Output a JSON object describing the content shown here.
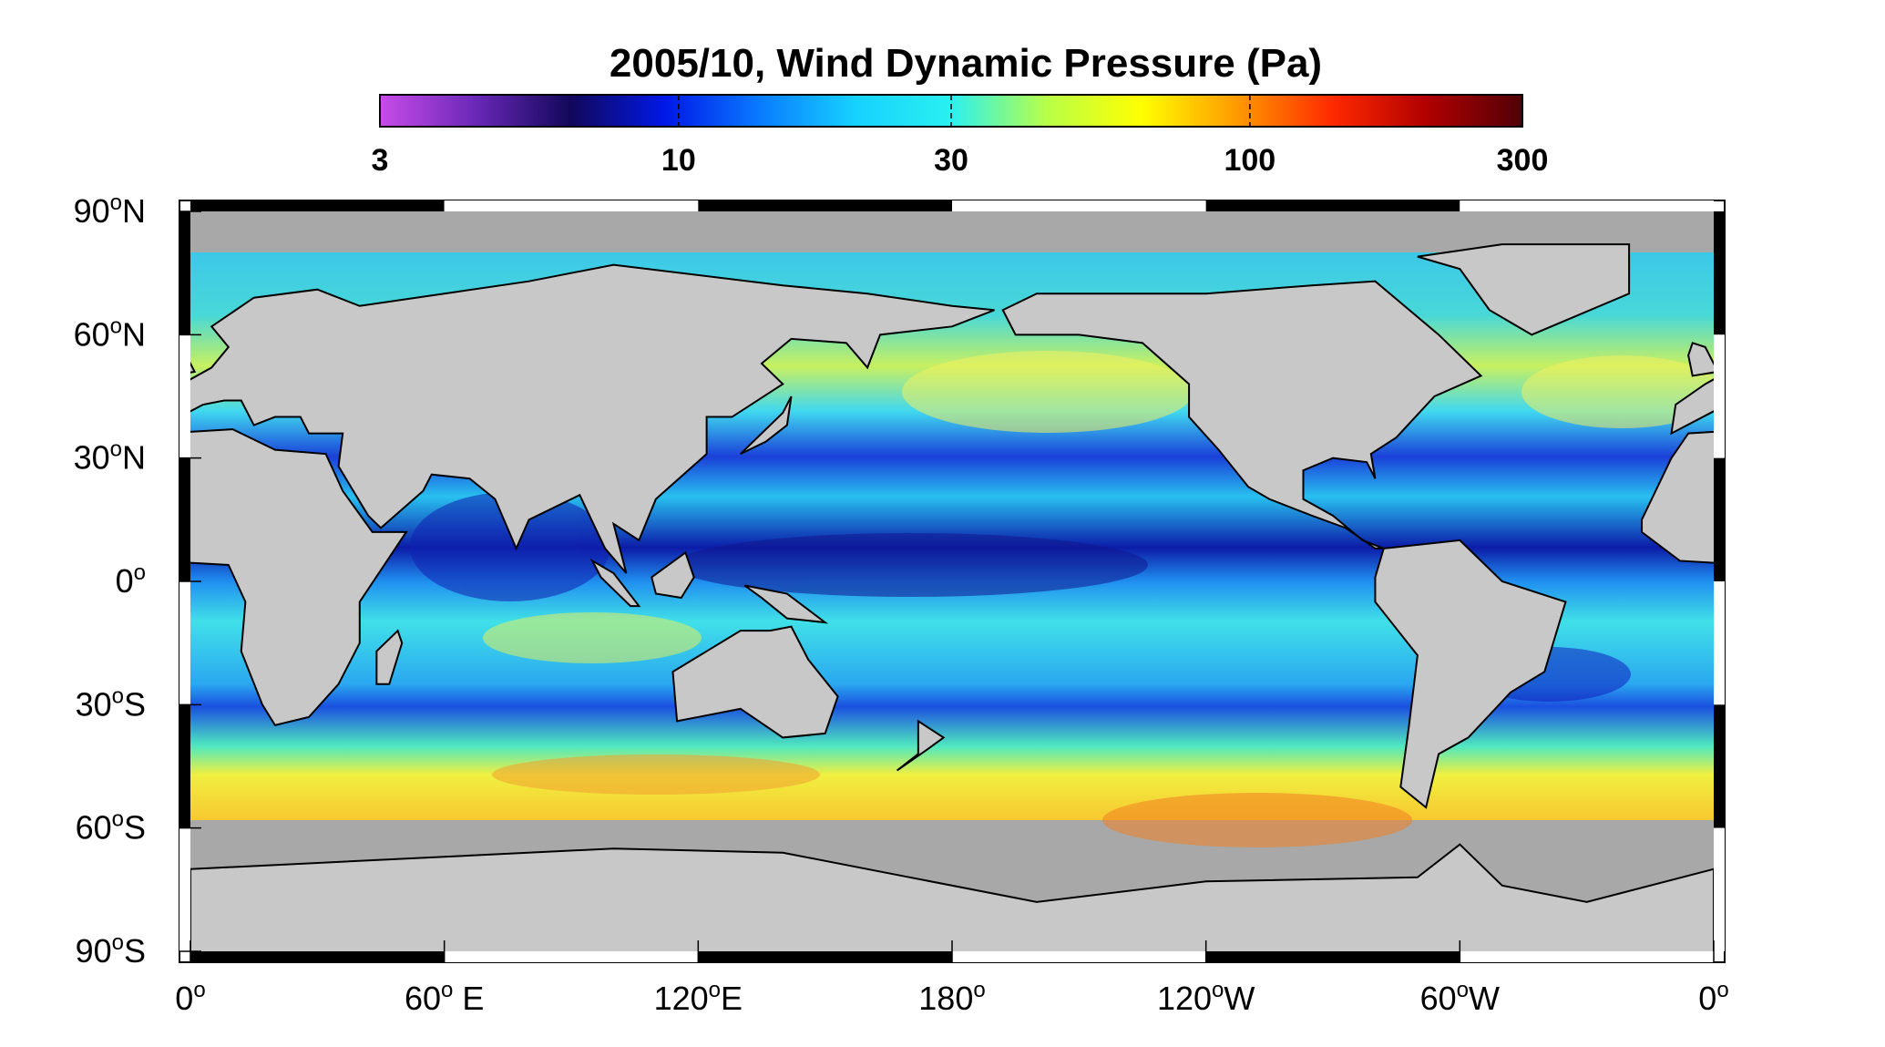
{
  "map": {
    "title": "2005/10, Wind Dynamic Pressure (Pa)",
    "colorbar": {
      "range": [
        3,
        300
      ],
      "log": true,
      "ticks": [
        3,
        10,
        30,
        100,
        300
      ],
      "colormap": [
        "#c84ce8",
        "#6a28b8",
        "#12085a",
        "#0018e8",
        "#0a7cff",
        "#16d2ff",
        "#2af0f0",
        "#b8ff48",
        "#ffff00",
        "#ff9a00",
        "#ff2a00",
        "#b00000",
        "#500008"
      ]
    },
    "lon_ticks": [
      {
        "value": 0,
        "label": "0",
        "sup": "o"
      },
      {
        "value": 60,
        "label": "60",
        "sup": "o",
        "suffix": " E"
      },
      {
        "value": 120,
        "label": "120",
        "sup": "o",
        "suffix": "E"
      },
      {
        "value": 180,
        "label": "180",
        "sup": "o"
      },
      {
        "value": 240,
        "label": "120",
        "sup": "o",
        "suffix": "W"
      },
      {
        "value": 300,
        "label": "60",
        "sup": "o",
        "suffix": "W"
      },
      {
        "value": 360,
        "label": "0",
        "sup": "o"
      }
    ],
    "lat_ticks": [
      {
        "value": 90,
        "label": "90",
        "sup": "o",
        "suffix": "N"
      },
      {
        "value": 60,
        "label": "60",
        "sup": "o",
        "suffix": "N"
      },
      {
        "value": 30,
        "label": "30",
        "sup": "o",
        "suffix": "N"
      },
      {
        "value": 0,
        "label": "0",
        "sup": "o"
      },
      {
        "value": -30,
        "label": "30",
        "sup": "o",
        "suffix": "S"
      },
      {
        "value": -60,
        "label": "60",
        "sup": "o",
        "suffix": "S"
      },
      {
        "value": -90,
        "label": "90",
        "sup": "o",
        "suffix": "S"
      }
    ]
  }
}
